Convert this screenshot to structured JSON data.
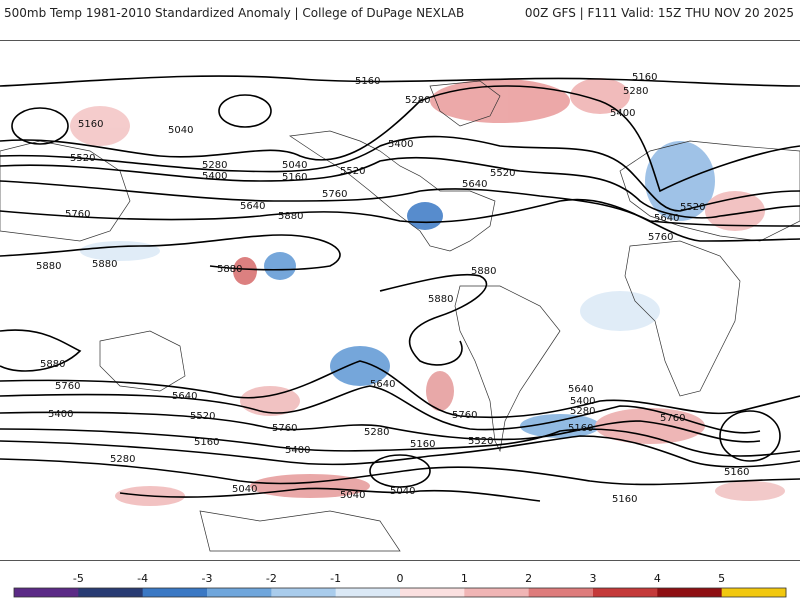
{
  "header": {
    "title": "500mb Temp 1981-2010 Standardized Anomaly | College of DuPage NEXLAB",
    "run_info": "00Z GFS | F111 Valid: 15Z THU NOV 20 2025"
  },
  "map": {
    "contour_labels": [
      {
        "text": "5160"
      },
      {
        "text": "5160"
      },
      {
        "text": "5280"
      },
      {
        "text": "5280"
      },
      {
        "text": "5400"
      },
      {
        "text": "5160"
      },
      {
        "text": "5040"
      },
      {
        "text": "5520"
      },
      {
        "text": "5280"
      },
      {
        "text": "5040"
      },
      {
        "text": "5400"
      },
      {
        "text": "5160"
      },
      {
        "text": "5520"
      },
      {
        "text": "5400"
      },
      {
        "text": "5520"
      },
      {
        "text": "5640"
      },
      {
        "text": "5760"
      },
      {
        "text": "5640"
      },
      {
        "text": "5760"
      },
      {
        "text": "5880"
      },
      {
        "text": "5520"
      },
      {
        "text": "5640"
      },
      {
        "text": "5760"
      },
      {
        "text": "5880"
      },
      {
        "text": "5880"
      },
      {
        "text": "5880"
      },
      {
        "text": "5880"
      },
      {
        "text": "5880"
      },
      {
        "text": "5880"
      },
      {
        "text": "5760"
      },
      {
        "text": "5640"
      },
      {
        "text": "5640"
      },
      {
        "text": "5520"
      },
      {
        "text": "5400"
      },
      {
        "text": "5760"
      },
      {
        "text": "5160"
      },
      {
        "text": "5280"
      },
      {
        "text": "5400"
      },
      {
        "text": "5280"
      },
      {
        "text": "5160"
      },
      {
        "text": "5520"
      },
      {
        "text": "5760"
      },
      {
        "text": "5640"
      },
      {
        "text": "5400"
      },
      {
        "text": "5280"
      },
      {
        "text": "5160"
      },
      {
        "text": "5760"
      },
      {
        "text": "5160"
      },
      {
        "text": "5040"
      },
      {
        "text": "5040"
      },
      {
        "text": "5040"
      },
      {
        "text": "5160"
      }
    ]
  },
  "colorbar": {
    "ticks": [
      "-5",
      "-4",
      "-3",
      "-2",
      "-1",
      "0",
      "1",
      "2",
      "3",
      "4",
      "5"
    ],
    "colors": [
      "#5b2a86",
      "#283b73",
      "#3a78c4",
      "#6fa6dc",
      "#a9ccec",
      "#dbe9f6",
      "#fbe0e0",
      "#f0b5b5",
      "#de7c7c",
      "#c43a3a",
      "#8e0f12",
      "#f2c80f"
    ]
  }
}
